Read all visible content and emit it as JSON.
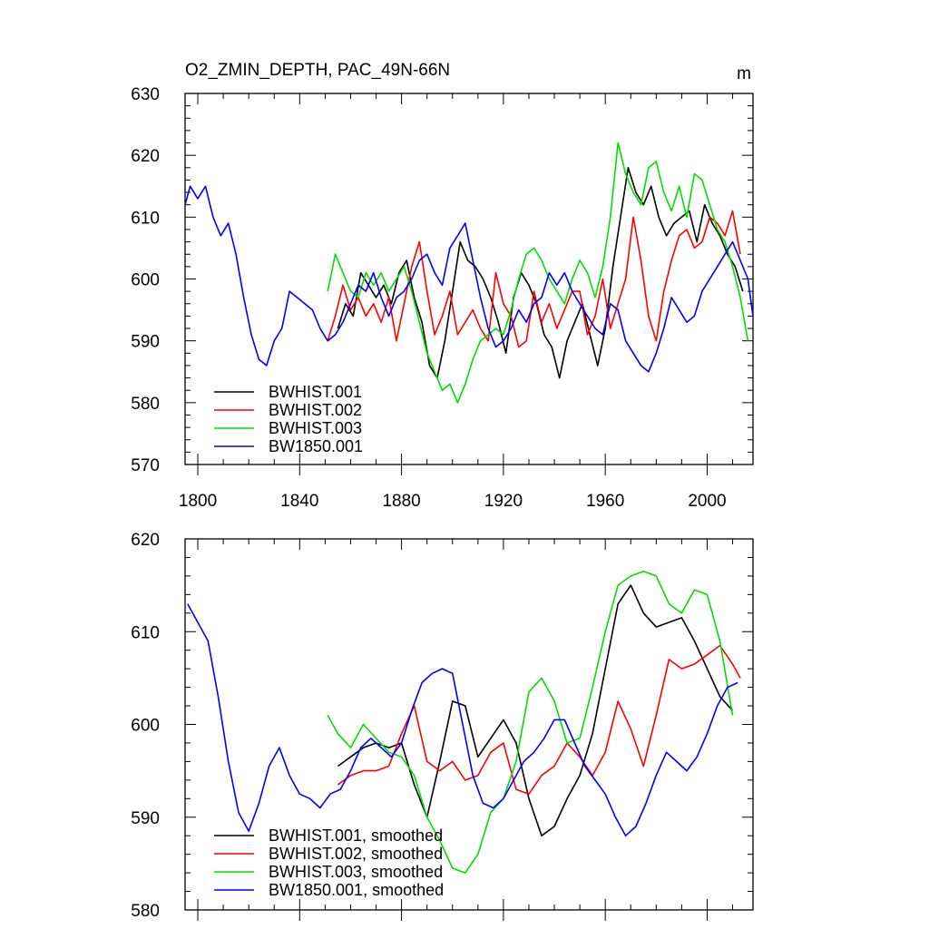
{
  "chart_data": [
    {
      "type": "line",
      "title": "O2_ZMIN_DEPTH, PAC_49N-66N",
      "units": "m",
      "xlabel": "",
      "ylabel": "",
      "xlim": [
        1795,
        2018
      ],
      "ylim": [
        570,
        630
      ],
      "xticks": [
        1800,
        1840,
        1880,
        1920,
        1960,
        2000
      ],
      "yticks": [
        570,
        580,
        590,
        600,
        610,
        620,
        630
      ],
      "legend_position": "bottom-left",
      "series": [
        {
          "name": "BWHIST.001",
          "color": "#000000",
          "x": [
            1855,
            1858,
            1861,
            1864,
            1867,
            1870,
            1873,
            1876,
            1879,
            1882,
            1885,
            1888,
            1891,
            1894,
            1897,
            1900,
            1903,
            1906,
            1909,
            1912,
            1915,
            1918,
            1921,
            1924,
            1927,
            1930,
            1933,
            1936,
            1939,
            1942,
            1945,
            1948,
            1951,
            1954,
            1957,
            1960,
            1963,
            1966,
            1969,
            1972,
            1975,
            1978,
            1981,
            1984,
            1987,
            1990,
            1993,
            1996,
            1999,
            2002,
            2005,
            2008,
            2011,
            2014
          ],
          "y": [
            592,
            596,
            594,
            601,
            599,
            597,
            599,
            596,
            601,
            603,
            597,
            593,
            586,
            584,
            590,
            598,
            606,
            603,
            602,
            600,
            597,
            593,
            588,
            597,
            601,
            599,
            596,
            591,
            589,
            584,
            590,
            593,
            596,
            591,
            586,
            592,
            602,
            610,
            618,
            614,
            612,
            615,
            610,
            607,
            609,
            610,
            611,
            606,
            612,
            609,
            607,
            604,
            602,
            598
          ]
        },
        {
          "name": "BWHIST.002",
          "color": "#ff0000",
          "x": [
            1851,
            1854,
            1857,
            1860,
            1863,
            1866,
            1869,
            1872,
            1875,
            1878,
            1881,
            1884,
            1887,
            1890,
            1893,
            1896,
            1899,
            1902,
            1905,
            1908,
            1911,
            1914,
            1917,
            1920,
            1923,
            1926,
            1929,
            1932,
            1935,
            1938,
            1941,
            1944,
            1947,
            1950,
            1953,
            1956,
            1959,
            1962,
            1965,
            1968,
            1971,
            1974,
            1977,
            1980,
            1983,
            1986,
            1989,
            1992,
            1995,
            1998,
            2001,
            2004,
            2007,
            2010,
            2013
          ],
          "y": [
            590,
            594,
            599,
            595,
            597,
            594,
            596,
            593,
            597,
            590,
            596,
            602,
            606,
            598,
            591,
            594,
            598,
            591,
            593,
            595,
            592,
            590,
            601,
            596,
            594,
            589,
            590,
            598,
            593,
            596,
            592,
            595,
            598,
            598,
            591,
            594,
            600,
            592,
            596,
            600,
            610,
            603,
            594,
            590,
            598,
            603,
            607,
            608,
            605,
            606,
            610,
            609,
            607,
            611,
            604
          ]
        },
        {
          "name": "BWHIST.003",
          "color": "#00e000",
          "x": [
            1851,
            1854,
            1857,
            1860,
            1863,
            1866,
            1869,
            1872,
            1875,
            1878,
            1881,
            1884,
            1887,
            1890,
            1893,
            1896,
            1899,
            1902,
            1905,
            1908,
            1911,
            1914,
            1917,
            1920,
            1923,
            1926,
            1929,
            1932,
            1935,
            1938,
            1941,
            1944,
            1947,
            1950,
            1953,
            1956,
            1959,
            1962,
            1965,
            1968,
            1971,
            1974,
            1977,
            1980,
            1983,
            1986,
            1989,
            1992,
            1995,
            1998,
            2001,
            2004,
            2007,
            2010,
            2013,
            2016
          ],
          "y": [
            598,
            604,
            601,
            598,
            597,
            601,
            599,
            601,
            598,
            600,
            602,
            598,
            593,
            588,
            585,
            582,
            583,
            580,
            583,
            587,
            590,
            591,
            592,
            591,
            595,
            600,
            604,
            605,
            603,
            600,
            598,
            596,
            600,
            603,
            601,
            597,
            602,
            610,
            622,
            617,
            614,
            612,
            618,
            619,
            614,
            611,
            615,
            610,
            617,
            616,
            612,
            608,
            606,
            602,
            597,
            590
          ]
        },
        {
          "name": "BW1850.001",
          "color": "#0000ff",
          "x": [
            1795,
            1797,
            1800,
            1803,
            1806,
            1809,
            1812,
            1815,
            1818,
            1821,
            1824,
            1827,
            1830,
            1833,
            1836,
            1839,
            1842,
            1845,
            1848,
            1851,
            1854,
            1857,
            1860,
            1863,
            1866,
            1869,
            1872,
            1875,
            1878,
            1881,
            1884,
            1887,
            1890,
            1893,
            1896,
            1899,
            1902,
            1905,
            1908,
            1911,
            1914,
            1917,
            1920,
            1923,
            1926,
            1929,
            1932,
            1935,
            1938,
            1941,
            1944,
            1947,
            1950,
            1953,
            1956,
            1959,
            1962,
            1965,
            1968,
            1971,
            1974,
            1977,
            1980,
            1983,
            1986,
            1989,
            1992,
            1995,
            1998,
            2001,
            2004,
            2007,
            2010,
            2013,
            2016,
            2018
          ],
          "y": [
            612,
            615,
            613,
            615,
            610,
            607,
            609,
            604,
            597,
            591,
            587,
            586,
            590,
            592,
            598,
            597,
            596,
            595,
            592,
            590,
            591,
            593,
            596,
            599,
            598,
            601,
            597,
            594,
            597,
            598,
            600,
            603,
            604,
            601,
            599,
            605,
            607,
            609,
            603,
            597,
            592,
            589,
            590,
            592,
            595,
            593,
            596,
            597,
            601,
            599,
            601,
            598,
            596,
            594,
            592,
            591,
            596,
            595,
            590,
            588,
            586,
            585,
            588,
            592,
            597,
            595,
            593,
            594,
            598,
            600,
            602,
            604,
            606,
            603,
            600,
            594
          ]
        }
      ]
    },
    {
      "type": "line",
      "title": "",
      "xlabel": "",
      "ylabel": "",
      "xlim": [
        1795,
        2018
      ],
      "ylim": [
        580,
        620
      ],
      "yticks": [
        580,
        590,
        600,
        610,
        620
      ],
      "legend_position": "bottom-left",
      "series": [
        {
          "name": "BWHIST.001, smoothed",
          "color": "#000000",
          "x": [
            1855,
            1860,
            1865,
            1870,
            1875,
            1880,
            1885,
            1890,
            1895,
            1900,
            1905,
            1910,
            1915,
            1920,
            1925,
            1930,
            1935,
            1940,
            1945,
            1950,
            1955,
            1960,
            1965,
            1970,
            1975,
            1980,
            1985,
            1990,
            1995,
            2000,
            2005,
            2010
          ],
          "y": [
            595.5,
            596.5,
            597.5,
            598.0,
            597.5,
            598.0,
            593.5,
            590.0,
            596.0,
            602.5,
            602.0,
            596.5,
            598.5,
            600.5,
            598.0,
            592.0,
            588.0,
            589.0,
            592.0,
            594.5,
            599.0,
            606.0,
            613.0,
            615.0,
            612.0,
            610.5,
            611.0,
            611.5,
            609.0,
            606.0,
            603.0,
            601.5
          ]
        },
        {
          "name": "BWHIST.002, smoothed",
          "color": "#ff0000",
          "x": [
            1855,
            1860,
            1865,
            1870,
            1875,
            1880,
            1885,
            1890,
            1895,
            1900,
            1905,
            1910,
            1915,
            1920,
            1925,
            1930,
            1935,
            1940,
            1945,
            1950,
            1955,
            1960,
            1965,
            1970,
            1975,
            1980,
            1985,
            1990,
            1995,
            2000,
            2005,
            2010,
            2013
          ],
          "y": [
            593.5,
            594.5,
            595.0,
            595.0,
            595.5,
            599.0,
            602.0,
            596.0,
            595.0,
            596.0,
            594.0,
            594.5,
            597.0,
            598.0,
            593.0,
            592.5,
            594.5,
            595.5,
            598.0,
            596.5,
            594.5,
            597.0,
            602.5,
            599.5,
            595.5,
            601.0,
            607.0,
            606.0,
            606.5,
            607.5,
            608.5,
            606.5,
            605.0
          ]
        },
        {
          "name": "BWHIST.003, smoothed",
          "color": "#00e000",
          "x": [
            1851,
            1855,
            1860,
            1865,
            1870,
            1875,
            1880,
            1885,
            1890,
            1895,
            1900,
            1905,
            1910,
            1915,
            1920,
            1925,
            1930,
            1935,
            1940,
            1945,
            1950,
            1955,
            1960,
            1965,
            1970,
            1975,
            1980,
            1985,
            1990,
            1995,
            2000,
            2005,
            2010
          ],
          "y": [
            601.0,
            599.0,
            597.5,
            600.0,
            598.5,
            597.0,
            596.5,
            594.5,
            590.0,
            587.5,
            584.5,
            584.0,
            586.0,
            590.5,
            592.0,
            596.0,
            603.5,
            605.0,
            602.5,
            598.0,
            598.5,
            604.0,
            610.0,
            615.0,
            616.0,
            616.5,
            616.0,
            613.0,
            612.0,
            614.5,
            614.0,
            609.0,
            601.0
          ]
        },
        {
          "name": "BW1850.001, smoothed",
          "color": "#0000ff",
          "x": [
            1796,
            1800,
            1804,
            1808,
            1812,
            1816,
            1820,
            1824,
            1828,
            1832,
            1836,
            1840,
            1844,
            1848,
            1852,
            1856,
            1860,
            1864,
            1868,
            1872,
            1876,
            1880,
            1884,
            1888,
            1892,
            1896,
            1900,
            1904,
            1908,
            1912,
            1916,
            1920,
            1924,
            1928,
            1932,
            1936,
            1940,
            1944,
            1948,
            1952,
            1956,
            1960,
            1964,
            1968,
            1972,
            1976,
            1980,
            1984,
            1988,
            1992,
            1996,
            2000,
            2004,
            2008,
            2012
          ],
          "y": [
            613.0,
            611.0,
            609.0,
            603.0,
            596.0,
            590.5,
            588.5,
            591.5,
            595.5,
            597.5,
            594.5,
            592.5,
            592.0,
            591.0,
            592.5,
            593.0,
            595.0,
            597.5,
            598.5,
            597.5,
            596.5,
            598.0,
            601.5,
            604.5,
            605.5,
            606.0,
            605.5,
            600.0,
            594.5,
            591.5,
            591.0,
            592.0,
            594.0,
            596.0,
            597.0,
            598.5,
            600.5,
            600.5,
            598.0,
            595.5,
            594.0,
            592.5,
            590.0,
            588.0,
            589.0,
            591.5,
            594.5,
            597.0,
            596.0,
            595.0,
            596.5,
            599.0,
            602.0,
            604.0,
            604.5
          ]
        }
      ]
    }
  ]
}
